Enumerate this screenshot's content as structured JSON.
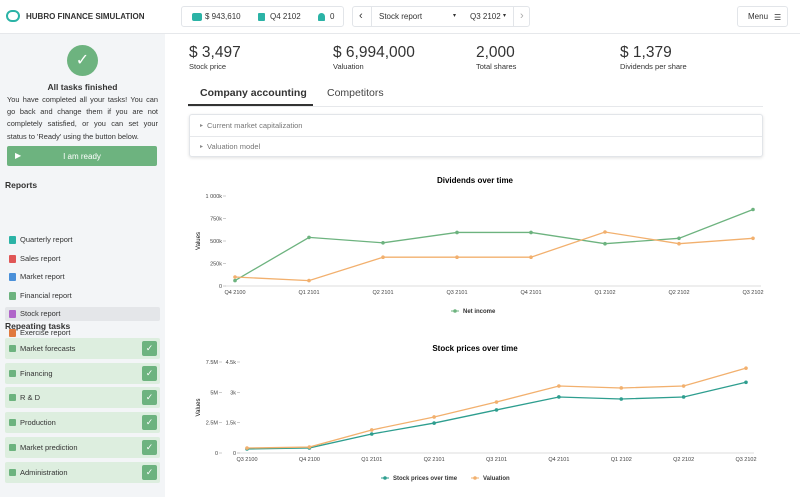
{
  "header": {
    "app_title": "HUBRO FINANCE SIMULATION",
    "cash": "$ 943,610",
    "quarter": "Q4 2102",
    "notifications": "0",
    "report_select": "Stock report",
    "quarter_select": "Q3 2102",
    "menu": "Menu"
  },
  "sidebar": {
    "status_title": "All tasks finished",
    "status_text": "You have completed all your tasks! You can go back and change them if you are not completely satisfied, or you can set your status to 'Ready' using the button below.",
    "ready_button": "I am ready",
    "reports_heading": "Reports",
    "reports": [
      "Quarterly report",
      "Sales report",
      "Market report",
      "Financial report",
      "Stock report",
      "Exercise report"
    ],
    "tasks_heading": "Repeating tasks",
    "tasks": [
      "Market forecasts",
      "Financing",
      "R & D",
      "Production",
      "Market prediction",
      "Administration"
    ]
  },
  "stats": [
    {
      "value": "$ 3,497",
      "label": "Stock price"
    },
    {
      "value": "$ 6,994,000",
      "label": "Valuation"
    },
    {
      "value": "2,000",
      "label": "Total shares"
    },
    {
      "value": "$ 1,379",
      "label": "Dividends per share"
    }
  ],
  "tabs": [
    "Company accounting",
    "Competitors"
  ],
  "accordion": [
    "Current market capitalization",
    "Valuation model"
  ],
  "chart_data": [
    {
      "type": "line",
      "title": "Dividends over time",
      "y_label": "Values",
      "categories": [
        "Q4 2100",
        "Q1 2101",
        "Q2 2101",
        "Q3 2101",
        "Q4 2101",
        "Q1 2102",
        "Q2 2102",
        "Q3 2102"
      ],
      "ylim": [
        0,
        1000000
      ],
      "yticks": [
        0,
        {
          "value": 250000,
          "label": "250k"
        },
        {
          "value": 500000,
          "label": "500k"
        },
        {
          "value": 750000,
          "label": "750k"
        },
        {
          "value": 1000000,
          "label": "1 000k"
        }
      ],
      "series": [
        {
          "name": "Net income",
          "color": "#6db37f",
          "values": [
            60000,
            540000,
            480000,
            595000,
            595000,
            470000,
            530000,
            850000
          ]
        },
        {
          "color": "#f2b06e",
          "values": [
            100000,
            60000,
            320000,
            320000,
            320000,
            600000,
            470000,
            530000
          ]
        }
      ]
    },
    {
      "type": "line",
      "title": "Stock prices over time",
      "y_label": "Values",
      "categories": [
        "Q3 2100",
        "Q4 2100",
        "Q1 2101",
        "Q2 2101",
        "Q3 2101",
        "Q4 2101",
        "Q1 2102",
        "Q2 2102",
        "Q3 2102"
      ],
      "ylim": [
        0,
        7500000
      ],
      "yticks": [
        0,
        {
          "value": 2500000,
          "label": "2.5M"
        },
        {
          "value": 5000000,
          "label": "5M"
        },
        {
          "value": 7500000,
          "label": "7.5M"
        }
      ],
      "y2lim": [
        0,
        4500
      ],
      "y2ticks": [
        0,
        {
          "value": 1500,
          "label": "1.5k"
        },
        {
          "value": 3000,
          "label": "3k"
        },
        {
          "value": 4500,
          "label": "4.5k"
        }
      ],
      "series": [
        {
          "name": "Stock prices over time",
          "color": "#2e9e8f",
          "axis": "y2",
          "values": [
            200,
            250,
            940,
            1480,
            2130,
            2770,
            2670,
            2770,
            3497
          ]
        },
        {
          "name": "Valuation",
          "color": "#f2b06e",
          "values": [
            410000,
            490000,
            1900000,
            2970000,
            4200000,
            5520000,
            5360000,
            5520000,
            6994000
          ]
        }
      ]
    }
  ]
}
